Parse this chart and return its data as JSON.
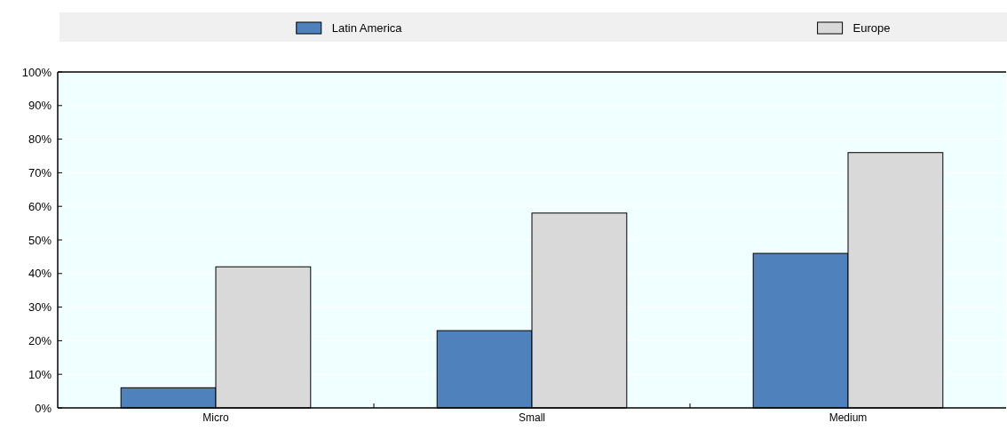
{
  "chart_data": {
    "type": "bar",
    "categories": [
      "Micro",
      "Small",
      "Medium"
    ],
    "series": [
      {
        "name": "Latin America",
        "color": "#4f81bd",
        "values": [
          6,
          23,
          46
        ]
      },
      {
        "name": "Europe",
        "color": "#d9d9d9",
        "values": [
          42,
          58,
          76
        ]
      }
    ],
    "ylim": [
      0,
      100
    ],
    "yticks": [
      {
        "value": 0,
        "label": "0%"
      },
      {
        "value": 10,
        "label": "10%"
      },
      {
        "value": 20,
        "label": "20%"
      },
      {
        "value": 30,
        "label": "30%"
      },
      {
        "value": 40,
        "label": "40%"
      },
      {
        "value": 50,
        "label": "50%"
      },
      {
        "value": 60,
        "label": "60%"
      },
      {
        "value": 70,
        "label": "70%"
      },
      {
        "value": 80,
        "label": "80%"
      },
      {
        "value": 90,
        "label": "90%"
      },
      {
        "value": 100,
        "label": "100%"
      }
    ],
    "grid": "y",
    "legend": "top"
  }
}
